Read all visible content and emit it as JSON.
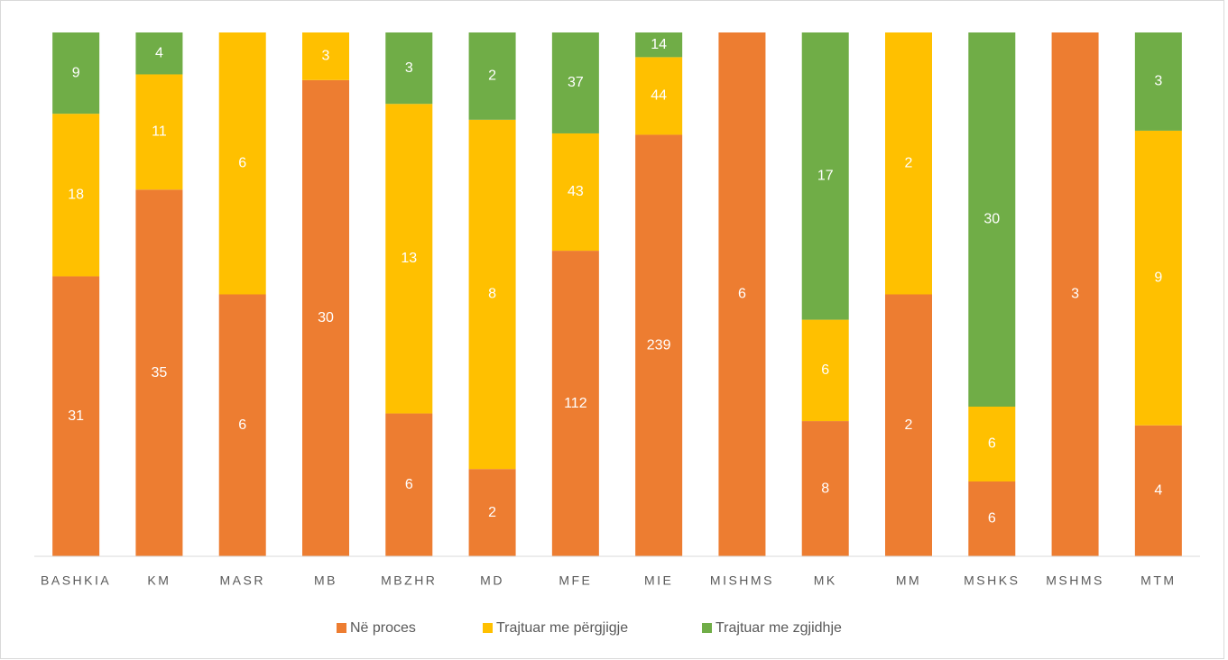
{
  "chart_data": {
    "type": "bar",
    "stacking": "percent",
    "categories": [
      "BASHKIA",
      "KM",
      "MASR",
      "MB",
      "MBZHR",
      "MD",
      "MFE",
      "MIE",
      "MISHMS",
      "MK",
      "MM",
      "MSHKS",
      "MSHMS",
      "MTM"
    ],
    "series": [
      {
        "name": "Në proces",
        "color": "#ed7d31",
        "values": [
          31,
          35,
          6,
          30,
          6,
          2,
          112,
          239,
          6,
          8,
          2,
          6,
          3,
          4
        ]
      },
      {
        "name": "Trajtuar me përgjigje",
        "color": "#ffc000",
        "values": [
          18,
          11,
          6,
          3,
          13,
          8,
          43,
          44,
          null,
          6,
          2,
          6,
          null,
          9
        ]
      },
      {
        "name": "Trajtuar me zgjidhje",
        "color": "#70ad47",
        "values": [
          9,
          4,
          null,
          null,
          3,
          2,
          37,
          14,
          null,
          17,
          null,
          30,
          null,
          3
        ]
      }
    ],
    "legend": "bottom"
  }
}
